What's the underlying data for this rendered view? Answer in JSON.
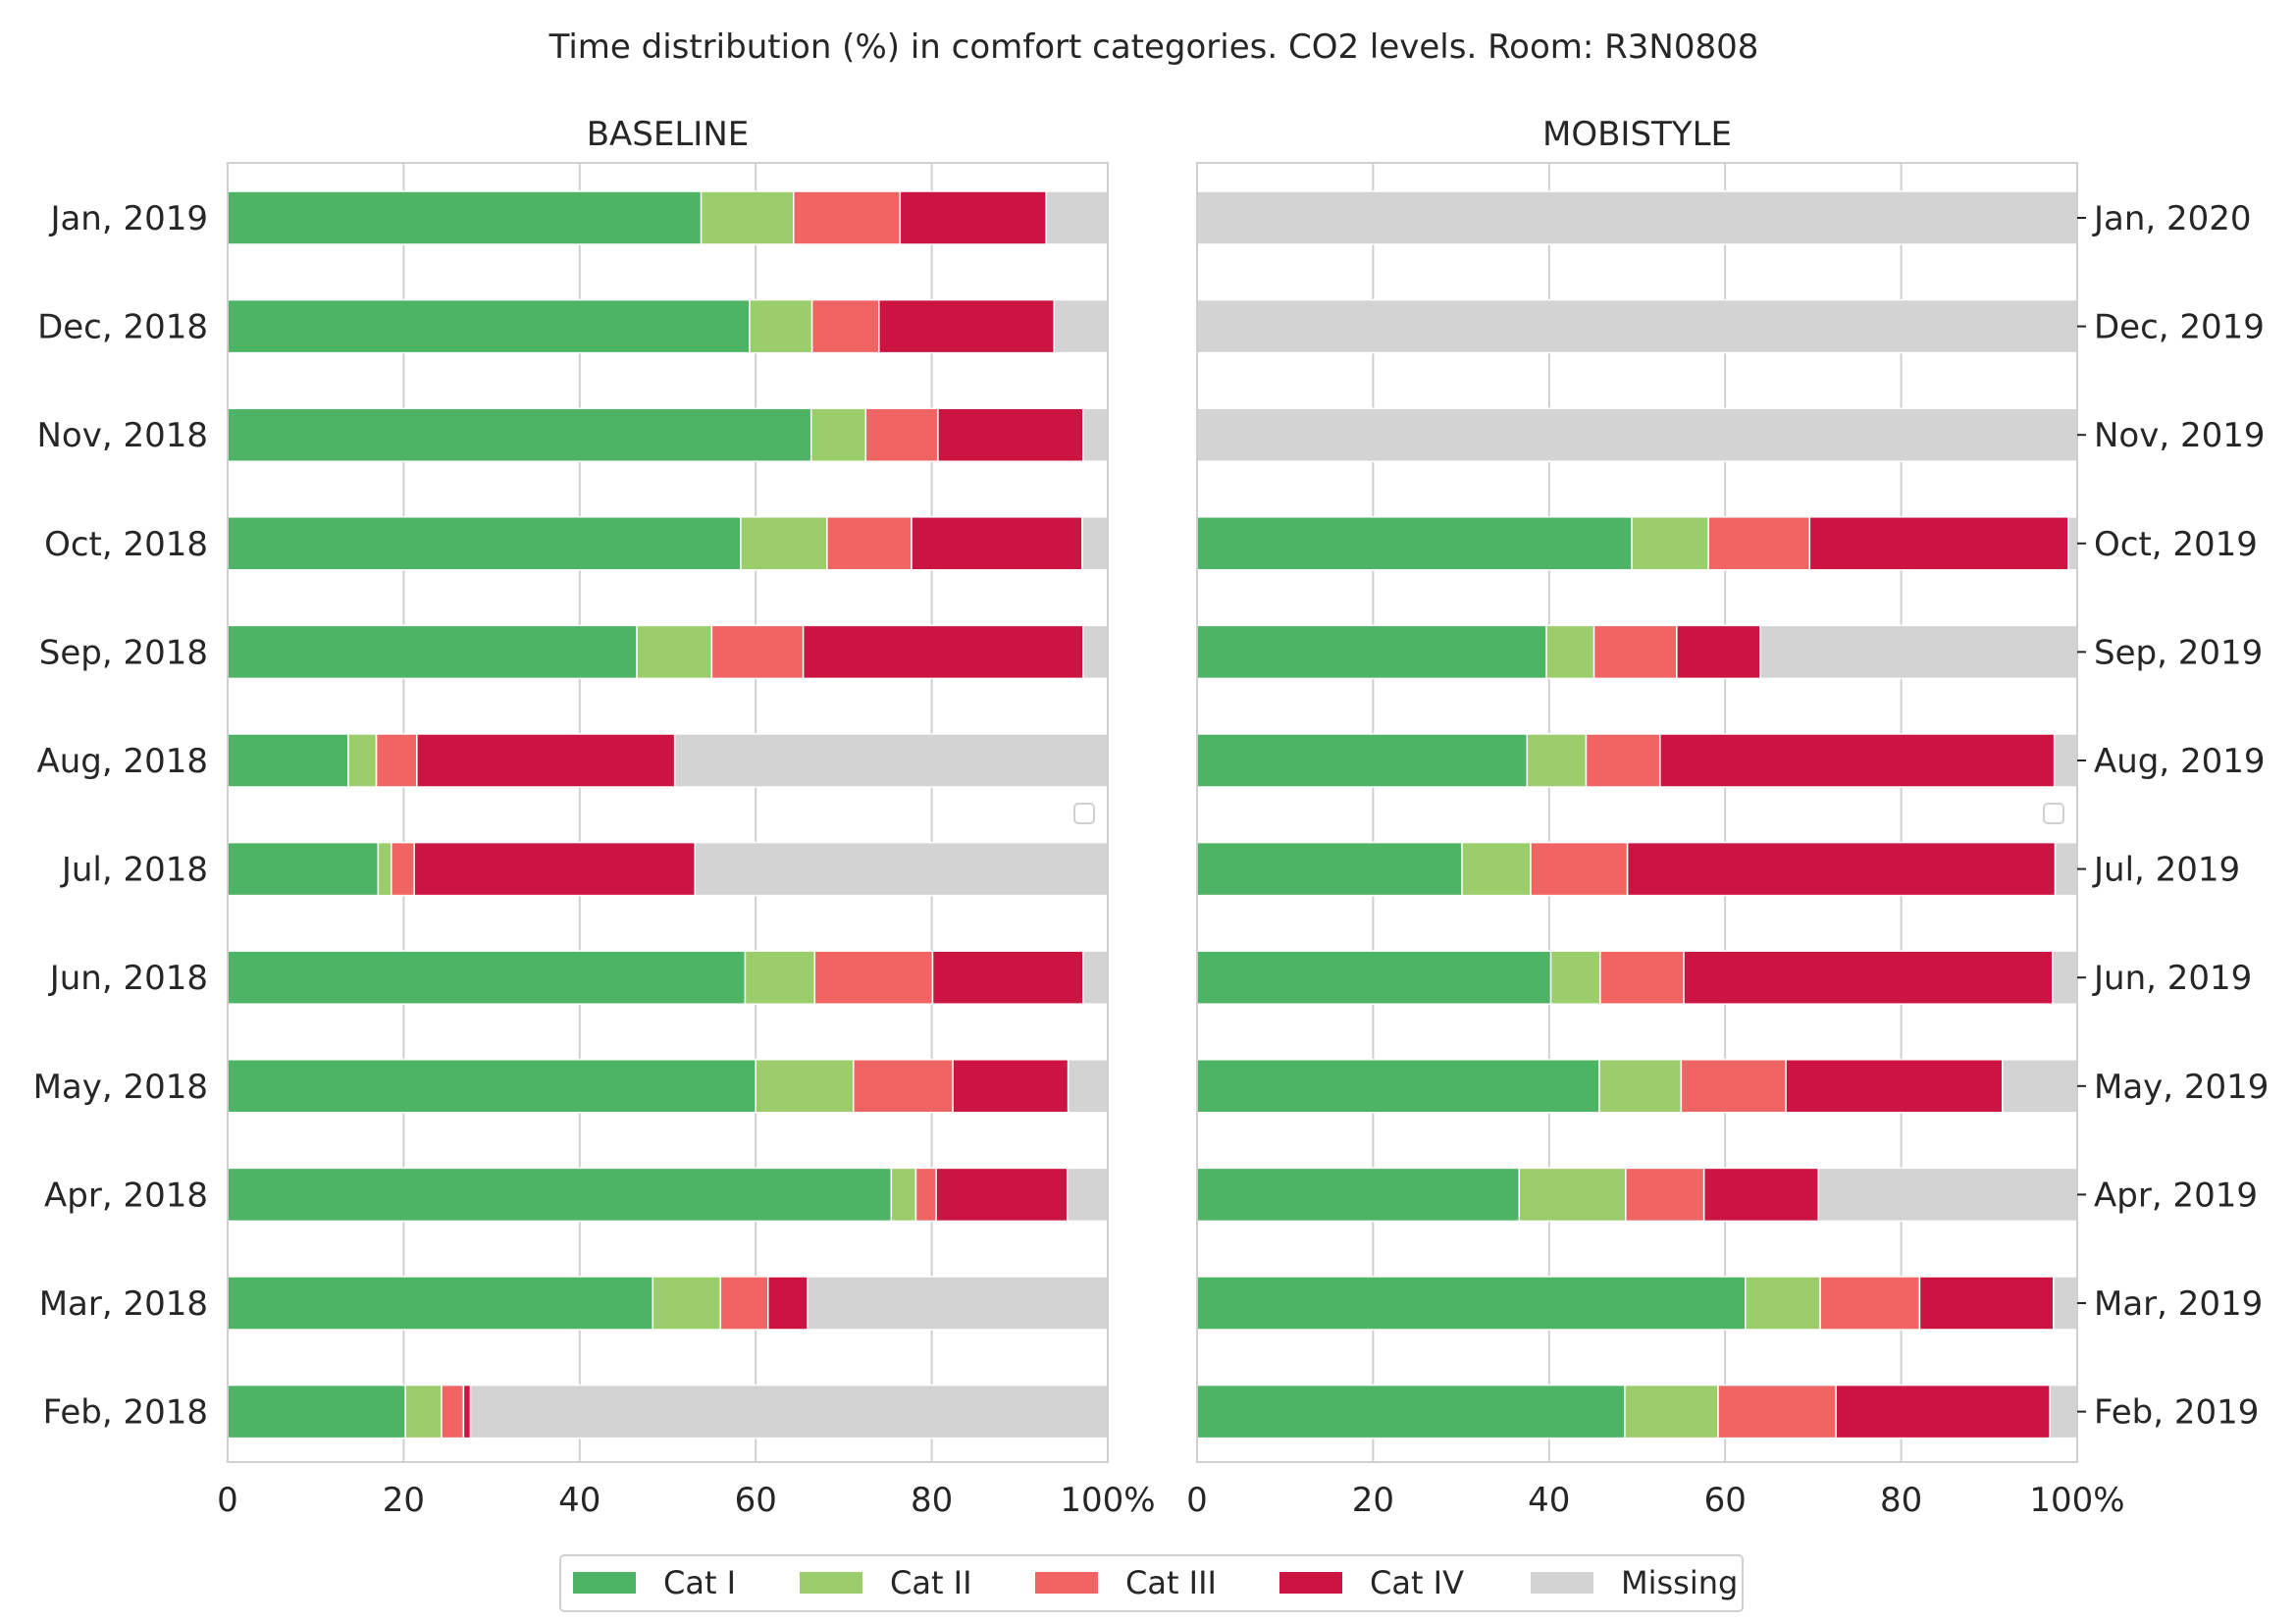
{
  "chart_data": {
    "type": "bar",
    "orientation": "horizontal",
    "stacked": true,
    "title": "Time distribution (%) in comfort categories. CO2 levels. Room: R3N0808",
    "x_range": [
      0,
      100
    ],
    "x_ticks": [
      "0",
      "20",
      "40",
      "60",
      "80",
      "100%"
    ],
    "grid": true,
    "legend_placement": "bottom-center",
    "colors": {
      "cat1": "#4db466",
      "cat2": "#9bcd6a",
      "cat3": "#f06464",
      "cat4": "#cc1442",
      "missing": "#d3d3d3"
    },
    "legend": [
      {
        "key": "cat1",
        "label": "Cat I"
      },
      {
        "key": "cat2",
        "label": "Cat II"
      },
      {
        "key": "cat3",
        "label": "Cat III"
      },
      {
        "key": "cat4",
        "label": "Cat IV"
      },
      {
        "key": "missing",
        "label": "Missing"
      }
    ],
    "panels": [
      {
        "title": "BASELINE",
        "months": [
          {
            "label": "Jan, 2019",
            "cat1": 53.8,
            "cat2": 10.5,
            "cat3": 12.1,
            "cat4": 16.6,
            "missing": 7.0
          },
          {
            "label": "Dec, 2018",
            "cat1": 59.3,
            "cat2": 7.1,
            "cat3": 7.6,
            "cat4": 19.9,
            "missing": 6.1
          },
          {
            "label": "Nov, 2018",
            "cat1": 66.3,
            "cat2": 6.2,
            "cat3": 8.2,
            "cat4": 16.5,
            "missing": 2.8
          },
          {
            "label": "Oct, 2018",
            "cat1": 58.3,
            "cat2": 9.8,
            "cat3": 9.6,
            "cat4": 19.4,
            "missing": 2.9
          },
          {
            "label": "Sep, 2018",
            "cat1": 46.5,
            "cat2": 8.5,
            "cat3": 10.4,
            "cat4": 31.8,
            "missing": 2.8
          },
          {
            "label": "Aug, 2018",
            "cat1": 13.7,
            "cat2": 3.2,
            "cat3": 4.6,
            "cat4": 29.3,
            "missing": 49.2
          },
          {
            "label": "Jul, 2018",
            "cat1": 17.1,
            "cat2": 1.5,
            "cat3": 2.6,
            "cat4": 31.9,
            "missing": 46.9
          },
          {
            "label": "Jun, 2018",
            "cat1": 58.8,
            "cat2": 7.9,
            "cat3": 13.4,
            "cat4": 17.1,
            "missing": 2.8
          },
          {
            "label": "May, 2018",
            "cat1": 60.0,
            "cat2": 11.1,
            "cat3": 11.3,
            "cat4": 13.1,
            "missing": 4.5
          },
          {
            "label": "Apr, 2018",
            "cat1": 75.4,
            "cat2": 2.8,
            "cat3": 2.3,
            "cat4": 14.9,
            "missing": 4.6
          },
          {
            "label": "Mar, 2018",
            "cat1": 48.3,
            "cat2": 7.7,
            "cat3": 5.4,
            "cat4": 4.5,
            "missing": 34.1
          },
          {
            "label": "Feb, 2018",
            "cat1": 20.2,
            "cat2": 4.1,
            "cat3": 2.5,
            "cat4": 0.8,
            "missing": 72.4
          }
        ]
      },
      {
        "title": "MOBISTYLE",
        "months": [
          {
            "label": "Jan, 2020",
            "cat1": 0,
            "cat2": 0,
            "cat3": 0,
            "cat4": 0,
            "missing": 100
          },
          {
            "label": "Dec, 2019",
            "cat1": 0,
            "cat2": 0,
            "cat3": 0,
            "cat4": 0,
            "missing": 100
          },
          {
            "label": "Nov, 2019",
            "cat1": 0,
            "cat2": 0,
            "cat3": 0,
            "cat4": 0,
            "missing": 100
          },
          {
            "label": "Oct, 2019",
            "cat1": 49.4,
            "cat2": 8.7,
            "cat3": 11.5,
            "cat4": 29.4,
            "missing": 1.0
          },
          {
            "label": "Sep, 2019",
            "cat1": 39.7,
            "cat2": 5.4,
            "cat3": 9.4,
            "cat4": 9.5,
            "missing": 36.0
          },
          {
            "label": "Aug, 2019",
            "cat1": 37.5,
            "cat2": 6.7,
            "cat3": 8.4,
            "cat4": 44.8,
            "missing": 2.6
          },
          {
            "label": "Jul, 2019",
            "cat1": 30.1,
            "cat2": 7.8,
            "cat3": 11.0,
            "cat4": 48.6,
            "missing": 2.5
          },
          {
            "label": "Jun, 2019",
            "cat1": 40.2,
            "cat2": 5.6,
            "cat3": 9.5,
            "cat4": 41.9,
            "missing": 2.8
          },
          {
            "label": "May, 2019",
            "cat1": 45.7,
            "cat2": 9.3,
            "cat3": 11.9,
            "cat4": 24.6,
            "missing": 8.5
          },
          {
            "label": "Apr, 2019",
            "cat1": 36.6,
            "cat2": 12.1,
            "cat3": 8.9,
            "cat4": 13.0,
            "missing": 29.4
          },
          {
            "label": "Mar, 2019",
            "cat1": 62.3,
            "cat2": 8.5,
            "cat3": 11.3,
            "cat4": 15.2,
            "missing": 2.7
          },
          {
            "label": "Feb, 2019",
            "cat1": 48.6,
            "cat2": 10.6,
            "cat3": 13.4,
            "cat4": 24.3,
            "missing": 3.1
          }
        ]
      }
    ]
  }
}
